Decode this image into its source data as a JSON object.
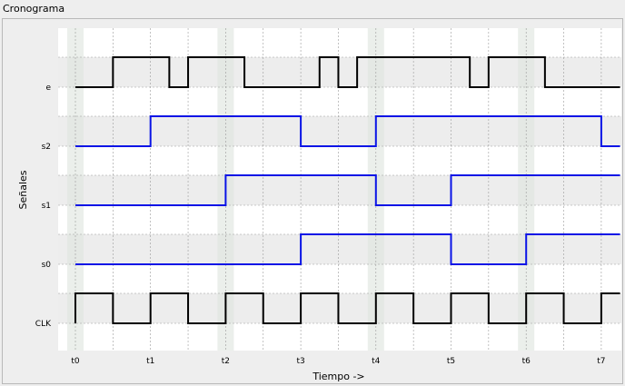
{
  "window": {
    "title": "Cronograma"
  },
  "chart": {
    "y_axis_label": "Señales",
    "x_axis_label": "Tiempo ->",
    "tick_labels": [
      "t0",
      "t1",
      "t2",
      "t3",
      "t4",
      "t5",
      "t6",
      "t7"
    ]
  },
  "colors": {
    "clock_and_input": "#000000",
    "state_signals": "#0a14e6",
    "highlight_band": "#dde4dd",
    "row_shade": "#ededed",
    "plot_bg": "#ffffff"
  },
  "chart_data": {
    "type": "timing",
    "time_range": [
      0,
      7.25
    ],
    "signals": [
      {
        "name": "e",
        "color": "#000000",
        "initial": 0,
        "transitions": [
          [
            0.5,
            1
          ],
          [
            1.25,
            0
          ],
          [
            1.5,
            1
          ],
          [
            2.25,
            0
          ],
          [
            3.25,
            1
          ],
          [
            3.5,
            0
          ],
          [
            3.75,
            1
          ],
          [
            5.25,
            0
          ],
          [
            5.5,
            1
          ],
          [
            6.25,
            0
          ]
        ]
      },
      {
        "name": "s2",
        "color": "#0a14e6",
        "initial": 0,
        "transitions": [
          [
            1,
            1
          ],
          [
            3,
            0
          ],
          [
            4,
            1
          ],
          [
            7,
            0
          ]
        ]
      },
      {
        "name": "s1",
        "color": "#0a14e6",
        "initial": 0,
        "transitions": [
          [
            2,
            1
          ],
          [
            4,
            0
          ],
          [
            5,
            1
          ]
        ]
      },
      {
        "name": "s0",
        "color": "#0a14e6",
        "initial": 0,
        "transitions": [
          [
            3,
            1
          ],
          [
            5,
            0
          ],
          [
            6,
            1
          ]
        ]
      },
      {
        "name": "CLK",
        "color": "#000000",
        "initial": 0,
        "transitions": [
          [
            0,
            1
          ],
          [
            0.5,
            0
          ],
          [
            1,
            1
          ],
          [
            1.5,
            0
          ],
          [
            2,
            1
          ],
          [
            2.5,
            0
          ],
          [
            3,
            1
          ],
          [
            3.5,
            0
          ],
          [
            4,
            1
          ],
          [
            4.5,
            0
          ],
          [
            5,
            1
          ],
          [
            5.5,
            0
          ],
          [
            6,
            1
          ],
          [
            6.5,
            0
          ],
          [
            7,
            1
          ]
        ]
      }
    ]
  }
}
